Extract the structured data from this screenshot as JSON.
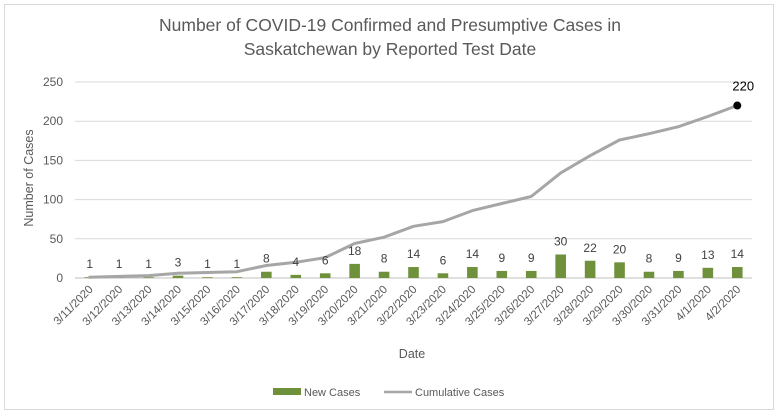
{
  "chart_data": {
    "type": "bar",
    "title_line1": "Number of COVID-19 Confirmed and Presumptive Cases in",
    "title_line2": "Saskatchewan by Reported Test Date",
    "xlabel": "Date",
    "ylabel": "Number of Cases",
    "ylim": [
      0,
      250
    ],
    "yticks": [
      0,
      50,
      100,
      150,
      200,
      250
    ],
    "grid": true,
    "legend_position": "bottom",
    "categories": [
      "3/11/2020",
      "3/12/2020",
      "3/13/2020",
      "3/14/2020",
      "3/15/2020",
      "3/16/2020",
      "3/17/2020",
      "3/18/2020",
      "3/19/2020",
      "3/20/2020",
      "3/21/2020",
      "3/22/2020",
      "3/23/2020",
      "3/24/2020",
      "3/25/2020",
      "3/26/2020",
      "3/27/2020",
      "3/28/2020",
      "3/29/2020",
      "3/30/2020",
      "3/31/2020",
      "4/1/2020",
      "4/2/2020"
    ],
    "series": [
      {
        "name": "New Cases",
        "type": "bar",
        "color": "#70913c",
        "values": [
          1,
          1,
          1,
          3,
          1,
          1,
          8,
          4,
          6,
          18,
          8,
          14,
          6,
          14,
          9,
          9,
          30,
          22,
          20,
          8,
          9,
          13,
          14
        ]
      },
      {
        "name": "Cumulative Cases",
        "type": "line",
        "color": "#a6a6a6",
        "values": [
          1,
          2,
          3,
          6,
          7,
          8,
          16,
          20,
          26,
          44,
          52,
          66,
          72,
          86,
          95,
          104,
          134,
          156,
          176,
          184,
          193,
          206,
          220
        ]
      }
    ],
    "end_label": "220"
  }
}
